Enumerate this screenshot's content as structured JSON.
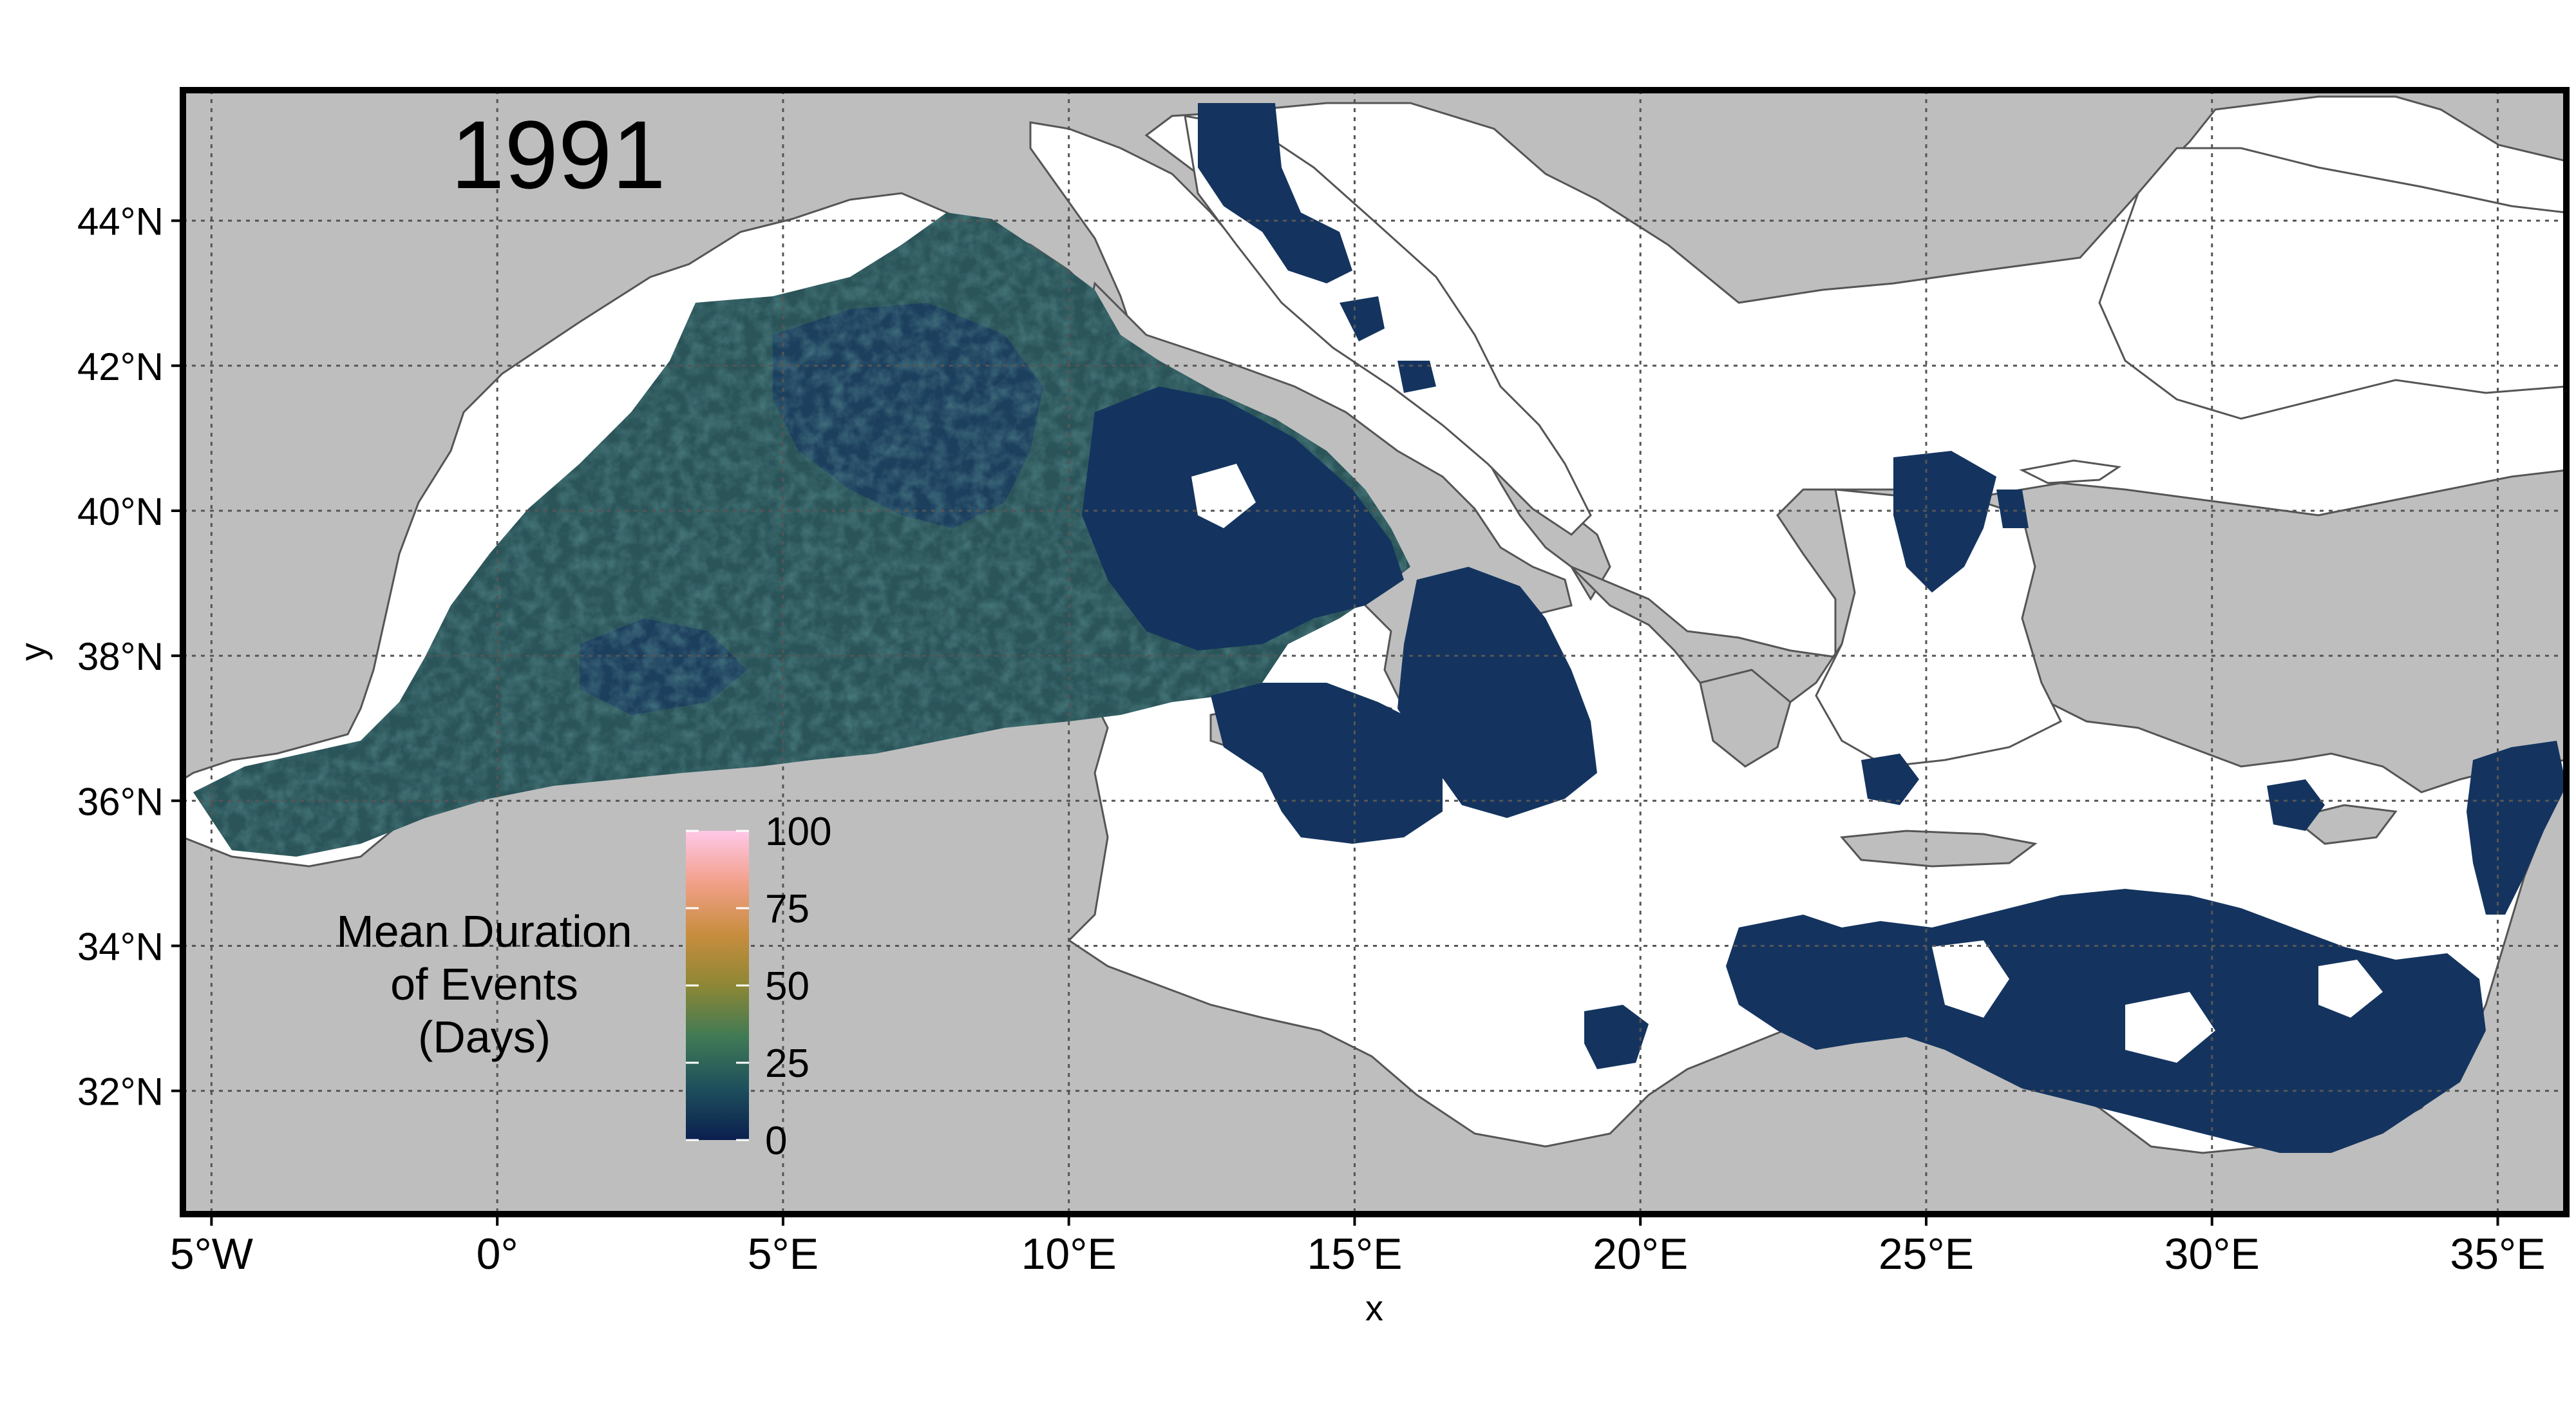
{
  "map": {
    "year_label": "1991",
    "x_axis_label": "x",
    "y_axis_label": "y",
    "x_ticks": [
      {
        "lon": -5,
        "label": "5°W"
      },
      {
        "lon": 0,
        "label": "0°"
      },
      {
        "lon": 5,
        "label": "5°E"
      },
      {
        "lon": 10,
        "label": "10°E"
      },
      {
        "lon": 15,
        "label": "15°E"
      },
      {
        "lon": 20,
        "label": "20°E"
      },
      {
        "lon": 25,
        "label": "25°E"
      },
      {
        "lon": 30,
        "label": "30°E"
      },
      {
        "lon": 35,
        "label": "35°E"
      }
    ],
    "y_ticks": [
      {
        "lat": 32,
        "label": "32°N"
      },
      {
        "lat": 34,
        "label": "34°N"
      },
      {
        "lat": 36,
        "label": "36°N"
      },
      {
        "lat": 38,
        "label": "38°N"
      },
      {
        "lat": 40,
        "label": "40°N"
      },
      {
        "lat": 42,
        "label": "42°N"
      },
      {
        "lat": 44,
        "label": "44°N"
      }
    ],
    "extent": {
      "lon_min": -5.5,
      "lon_max": 36.2,
      "lat_min": 30.3,
      "lat_max": 45.8
    },
    "legend": {
      "title_lines": [
        "Mean Duration",
        "of Events",
        "(Days)"
      ],
      "ticks": [
        {
          "value": 0,
          "label": "0"
        },
        {
          "value": 25,
          "label": "25"
        },
        {
          "value": 50,
          "label": "50"
        },
        {
          "value": 75,
          "label": "75"
        },
        {
          "value": 100,
          "label": "100"
        }
      ],
      "range": [
        0,
        100
      ],
      "gradient_colors": [
        "#0b1f4f",
        "#1e4f5c",
        "#3f7a55",
        "#8d8735",
        "#c88d3e",
        "#f2a08a",
        "#ffc8e8"
      ]
    },
    "colors": {
      "land": "#bebebe",
      "sea_no_data": "#ffffff",
      "low_duration": "#14345f",
      "moderate_duration": "#2e5a56",
      "coastline": "#555555",
      "frame": "#000000",
      "grid": "#555555"
    }
  }
}
